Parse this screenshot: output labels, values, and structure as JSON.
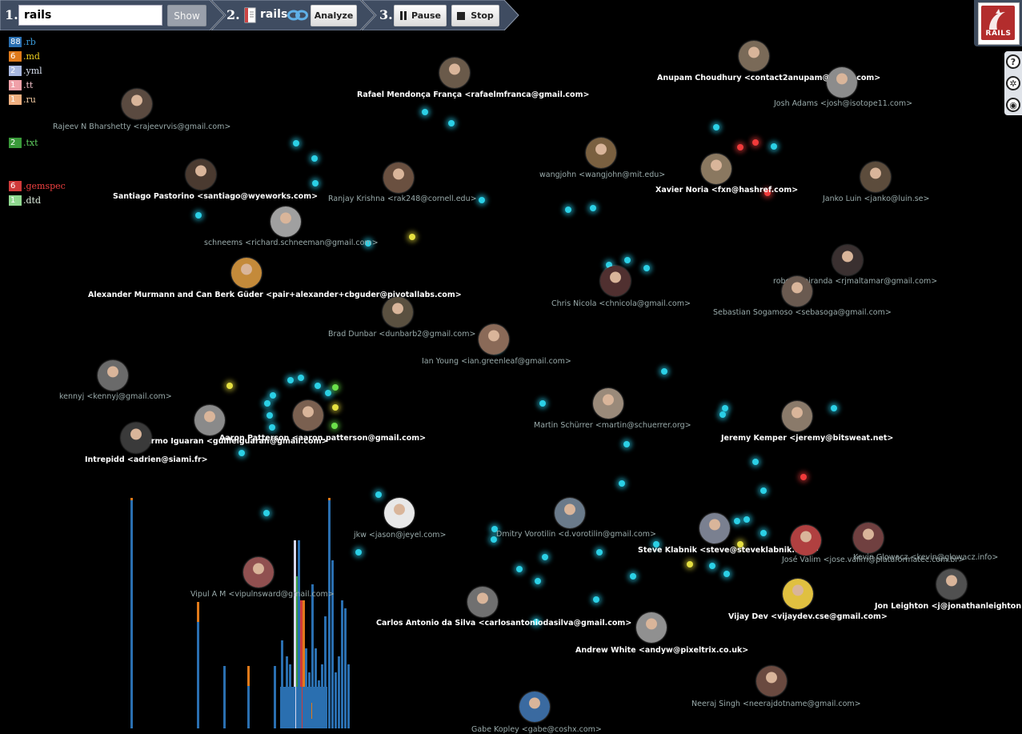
{
  "toolbar": {
    "step1": "1.",
    "step2": "2.",
    "step3": "3.",
    "repo_input_value": "rails",
    "show_label": "Show",
    "repo_name": "rails",
    "analyze_label": "Analyze",
    "pause_label": "Pause",
    "stop_label": "Stop"
  },
  "logo": {
    "text": "RAILS"
  },
  "tools": [
    "help-icon",
    "settings-icon",
    "view-icon"
  ],
  "legend": [
    {
      "count": "88",
      "ext": ".rb",
      "color": "#2a6fb0",
      "text_color": "#3a9ad9"
    },
    {
      "count": "6",
      "ext": ".md",
      "color": "#e07a1a",
      "text_color": "#f0d020"
    },
    {
      "count": "2",
      "ext": ".yml",
      "color": "#a8b8e0",
      "text_color": "#d8e0f0"
    },
    {
      "count": "1",
      "ext": ".tt",
      "color": "#f0a0a8",
      "text_color": "#f0c0c8"
    },
    {
      "count": "1",
      "ext": ".ru",
      "color": "#f0b080",
      "text_color": "#f0c8a0"
    },
    {
      "count": "2",
      "ext": ".txt",
      "color": "#3a9a3a",
      "text_color": "#60d060"
    },
    {
      "count": "6",
      "ext": ".gemspec",
      "color": "#d03a3a",
      "text_color": "#f04040"
    },
    {
      "count": "1",
      "ext": ".dtd",
      "color": "#90d890",
      "text_color": "#e0f0e0"
    }
  ],
  "people": [
    {
      "name": "Rafael Mendonça França <rafaelmfranca@gmail.com>",
      "bright": true
    },
    {
      "name": "Anupam Choudhury <contact2anupam@gmail.com>",
      "bright": true
    },
    {
      "name": "Josh Adams <josh@isotope11.com>",
      "bright": false
    },
    {
      "name": "Rajeev N Bharshetty <rajeevrvis@gmail.com>",
      "bright": false
    },
    {
      "name": "Santiago Pastorino <santiago@wyeworks.com>",
      "bright": true
    },
    {
      "name": "Ranjay Krishna <rak248@cornell.edu>",
      "bright": false
    },
    {
      "name": "wangjohn <wangjohn@mit.edu>",
      "bright": false
    },
    {
      "name": "Xavier Noria <fxn@hashref.com>",
      "bright": true
    },
    {
      "name": "Janko Luin <janko@luin.se>",
      "bright": false
    },
    {
      "name": "schneems <richard.schneeman@gmail.com>",
      "bright": false
    },
    {
      "name": "Alexander Murmann and Can Berk Güder <pair+alexander+cbguder@pivotallabs.com>",
      "bright": true
    },
    {
      "name": "robertomiranda <rjmaltamar@gmail.com>",
      "bright": false
    },
    {
      "name": "Chris Nicola <chnicola@gmail.com>",
      "bright": false
    },
    {
      "name": "Sebastian Sogamoso <sebasoga@gmail.com>",
      "bright": false
    },
    {
      "name": "Brad Dunbar <dunbarb2@gmail.com>",
      "bright": false
    },
    {
      "name": "Ian Young <ian.greenleaf@gmail.com>",
      "bright": false
    },
    {
      "name": "kennyj <kennyj@gmail.com>",
      "bright": false
    },
    {
      "name": "Martin Schürrer <martin@schuerrer.org>",
      "bright": false
    },
    {
      "name": "Aaron Patterson <aaron.patterson@gmail.com>",
      "bright": true
    },
    {
      "name": "Guillermo Iguaran <guilleiguaran@gmail.com>",
      "bright": true
    },
    {
      "name": "Jeremy Kemper <jeremy@bitsweat.net>",
      "bright": true
    },
    {
      "name": "Intrepidd <adrien@siami.fr>",
      "bright": true
    },
    {
      "name": "jkw <jason@jeyel.com>",
      "bright": false
    },
    {
      "name": "Dmitry Vorotilin <d.vorotilin@gmail.com>",
      "bright": false
    },
    {
      "name": "Steve Klabnik <steve@steveklabnik.com>",
      "bright": true
    },
    {
      "name": "José Valim <jose.valim@plataformatec.com.br>",
      "bright": false
    },
    {
      "name": "Kevin Glowacz <kevin@glowacz.info>",
      "bright": false
    },
    {
      "name": "Vipul A M <vipulnsward@gmail.com>",
      "bright": false
    },
    {
      "name": "Carlos Antonio da Silva <carlosantoniodasilva@gmail.com>",
      "bright": true
    },
    {
      "name": "Vijay Dev <vijaydev.cse@gmail.com>",
      "bright": true
    },
    {
      "name": "Jon Leighton <j@jonathanleighton.com>",
      "bright": true
    },
    {
      "name": "Andrew White <andyw@pixeltrix.co.uk>",
      "bright": true
    },
    {
      "name": "Neeraj Singh <neerajdotname@gmail.com>",
      "bright": false
    },
    {
      "name": "Gabe Kopley <gabe@coshx.com>",
      "bright": false
    }
  ]
}
